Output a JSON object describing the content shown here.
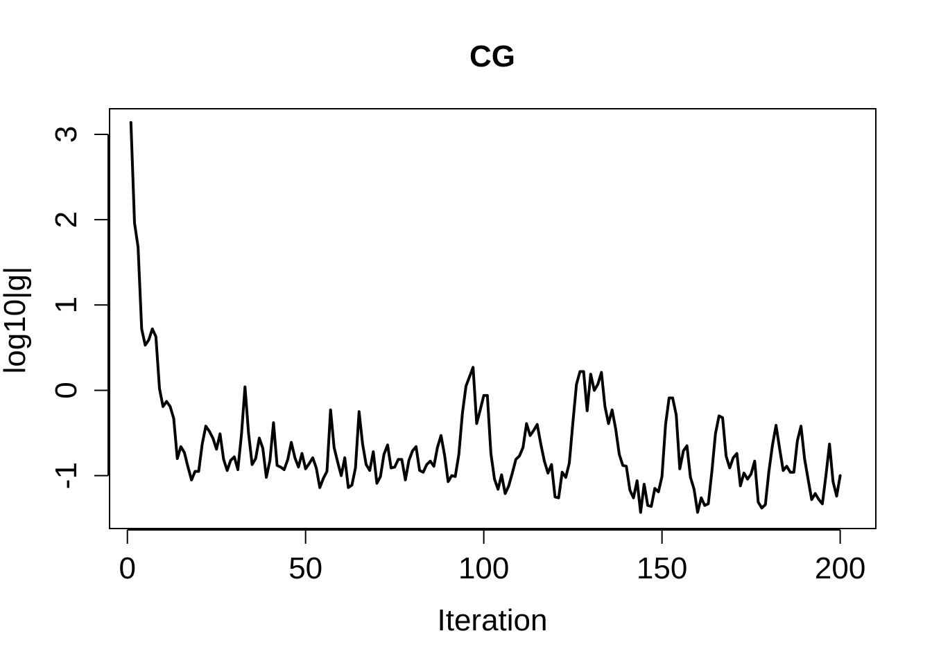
{
  "chart_data": {
    "type": "line",
    "title": "CG",
    "xlabel": "Iteration",
    "ylabel": "log10|g|",
    "xlim": [
      -5,
      210
    ],
    "ylim": [
      -1.62,
      3.3
    ],
    "x_ticks": [
      0,
      50,
      100,
      150,
      200
    ],
    "x_tick_labels": [
      "0",
      "50",
      "100",
      "150",
      "200"
    ],
    "y_ticks": [
      -1,
      0,
      1,
      2,
      3
    ],
    "y_tick_labels": [
      "-1",
      "0",
      "1",
      "2",
      "3"
    ],
    "grid": false,
    "line_color": "#000000",
    "series": [
      {
        "x_start": 1,
        "x_step": 1,
        "values": [
          3.14,
          1.96,
          1.68,
          0.72,
          0.53,
          0.59,
          0.72,
          0.63,
          0.02,
          -0.19,
          -0.13,
          -0.19,
          -0.33,
          -0.8,
          -0.66,
          -0.73,
          -0.9,
          -1.05,
          -0.95,
          -0.95,
          -0.63,
          -0.42,
          -0.48,
          -0.56,
          -0.69,
          -0.51,
          -0.81,
          -0.94,
          -0.82,
          -0.78,
          -0.93,
          -0.52,
          0.04,
          -0.5,
          -0.87,
          -0.8,
          -0.56,
          -0.68,
          -1.02,
          -0.82,
          -0.38,
          -0.88,
          -0.9,
          -0.93,
          -0.81,
          -0.61,
          -0.79,
          -0.9,
          -0.74,
          -0.92,
          -0.86,
          -0.79,
          -0.91,
          -1.14,
          -1.03,
          -0.95,
          -0.23,
          -0.67,
          -0.84,
          -1.0,
          -0.79,
          -1.14,
          -1.11,
          -0.91,
          -0.25,
          -0.63,
          -0.87,
          -0.94,
          -0.72,
          -1.09,
          -1.01,
          -0.75,
          -0.64,
          -0.91,
          -0.9,
          -0.81,
          -0.81,
          -1.05,
          -0.82,
          -0.71,
          -0.66,
          -0.94,
          -0.96,
          -0.87,
          -0.83,
          -0.89,
          -0.67,
          -0.53,
          -0.76,
          -1.07,
          -1.0,
          -1.01,
          -0.75,
          -0.27,
          0.05,
          0.16,
          0.27,
          -0.39,
          -0.23,
          -0.06,
          -0.06,
          -0.74,
          -1.04,
          -1.16,
          -0.99,
          -1.21,
          -1.12,
          -0.97,
          -0.81,
          -0.77,
          -0.67,
          -0.39,
          -0.53,
          -0.47,
          -0.4,
          -0.63,
          -0.83,
          -0.97,
          -0.87,
          -1.25,
          -1.26,
          -0.96,
          -1.02,
          -0.85,
          -0.38,
          0.07,
          0.22,
          0.22,
          -0.24,
          0.19,
          0.0,
          0.07,
          0.21,
          -0.19,
          -0.39,
          -0.23,
          -0.45,
          -0.75,
          -0.88,
          -0.89,
          -1.17,
          -1.26,
          -1.06,
          -1.43,
          -1.1,
          -1.35,
          -1.36,
          -1.15,
          -1.19,
          -1.01,
          -0.4,
          -0.09,
          -0.09,
          -0.29,
          -0.92,
          -0.71,
          -0.65,
          -1.02,
          -1.16,
          -1.43,
          -1.26,
          -1.35,
          -1.33,
          -0.95,
          -0.51,
          -0.3,
          -0.32,
          -0.77,
          -0.91,
          -0.79,
          -0.74,
          -1.12,
          -0.97,
          -1.04,
          -0.98,
          -0.83,
          -1.31,
          -1.38,
          -1.34,
          -0.95,
          -0.64,
          -0.41,
          -0.68,
          -0.94,
          -0.89,
          -0.96,
          -0.96,
          -0.59,
          -0.42,
          -0.8,
          -1.04,
          -1.28,
          -1.21,
          -1.28,
          -1.33,
          -1.0,
          -0.63,
          -1.07,
          -1.24,
          -1.0
        ]
      }
    ]
  }
}
